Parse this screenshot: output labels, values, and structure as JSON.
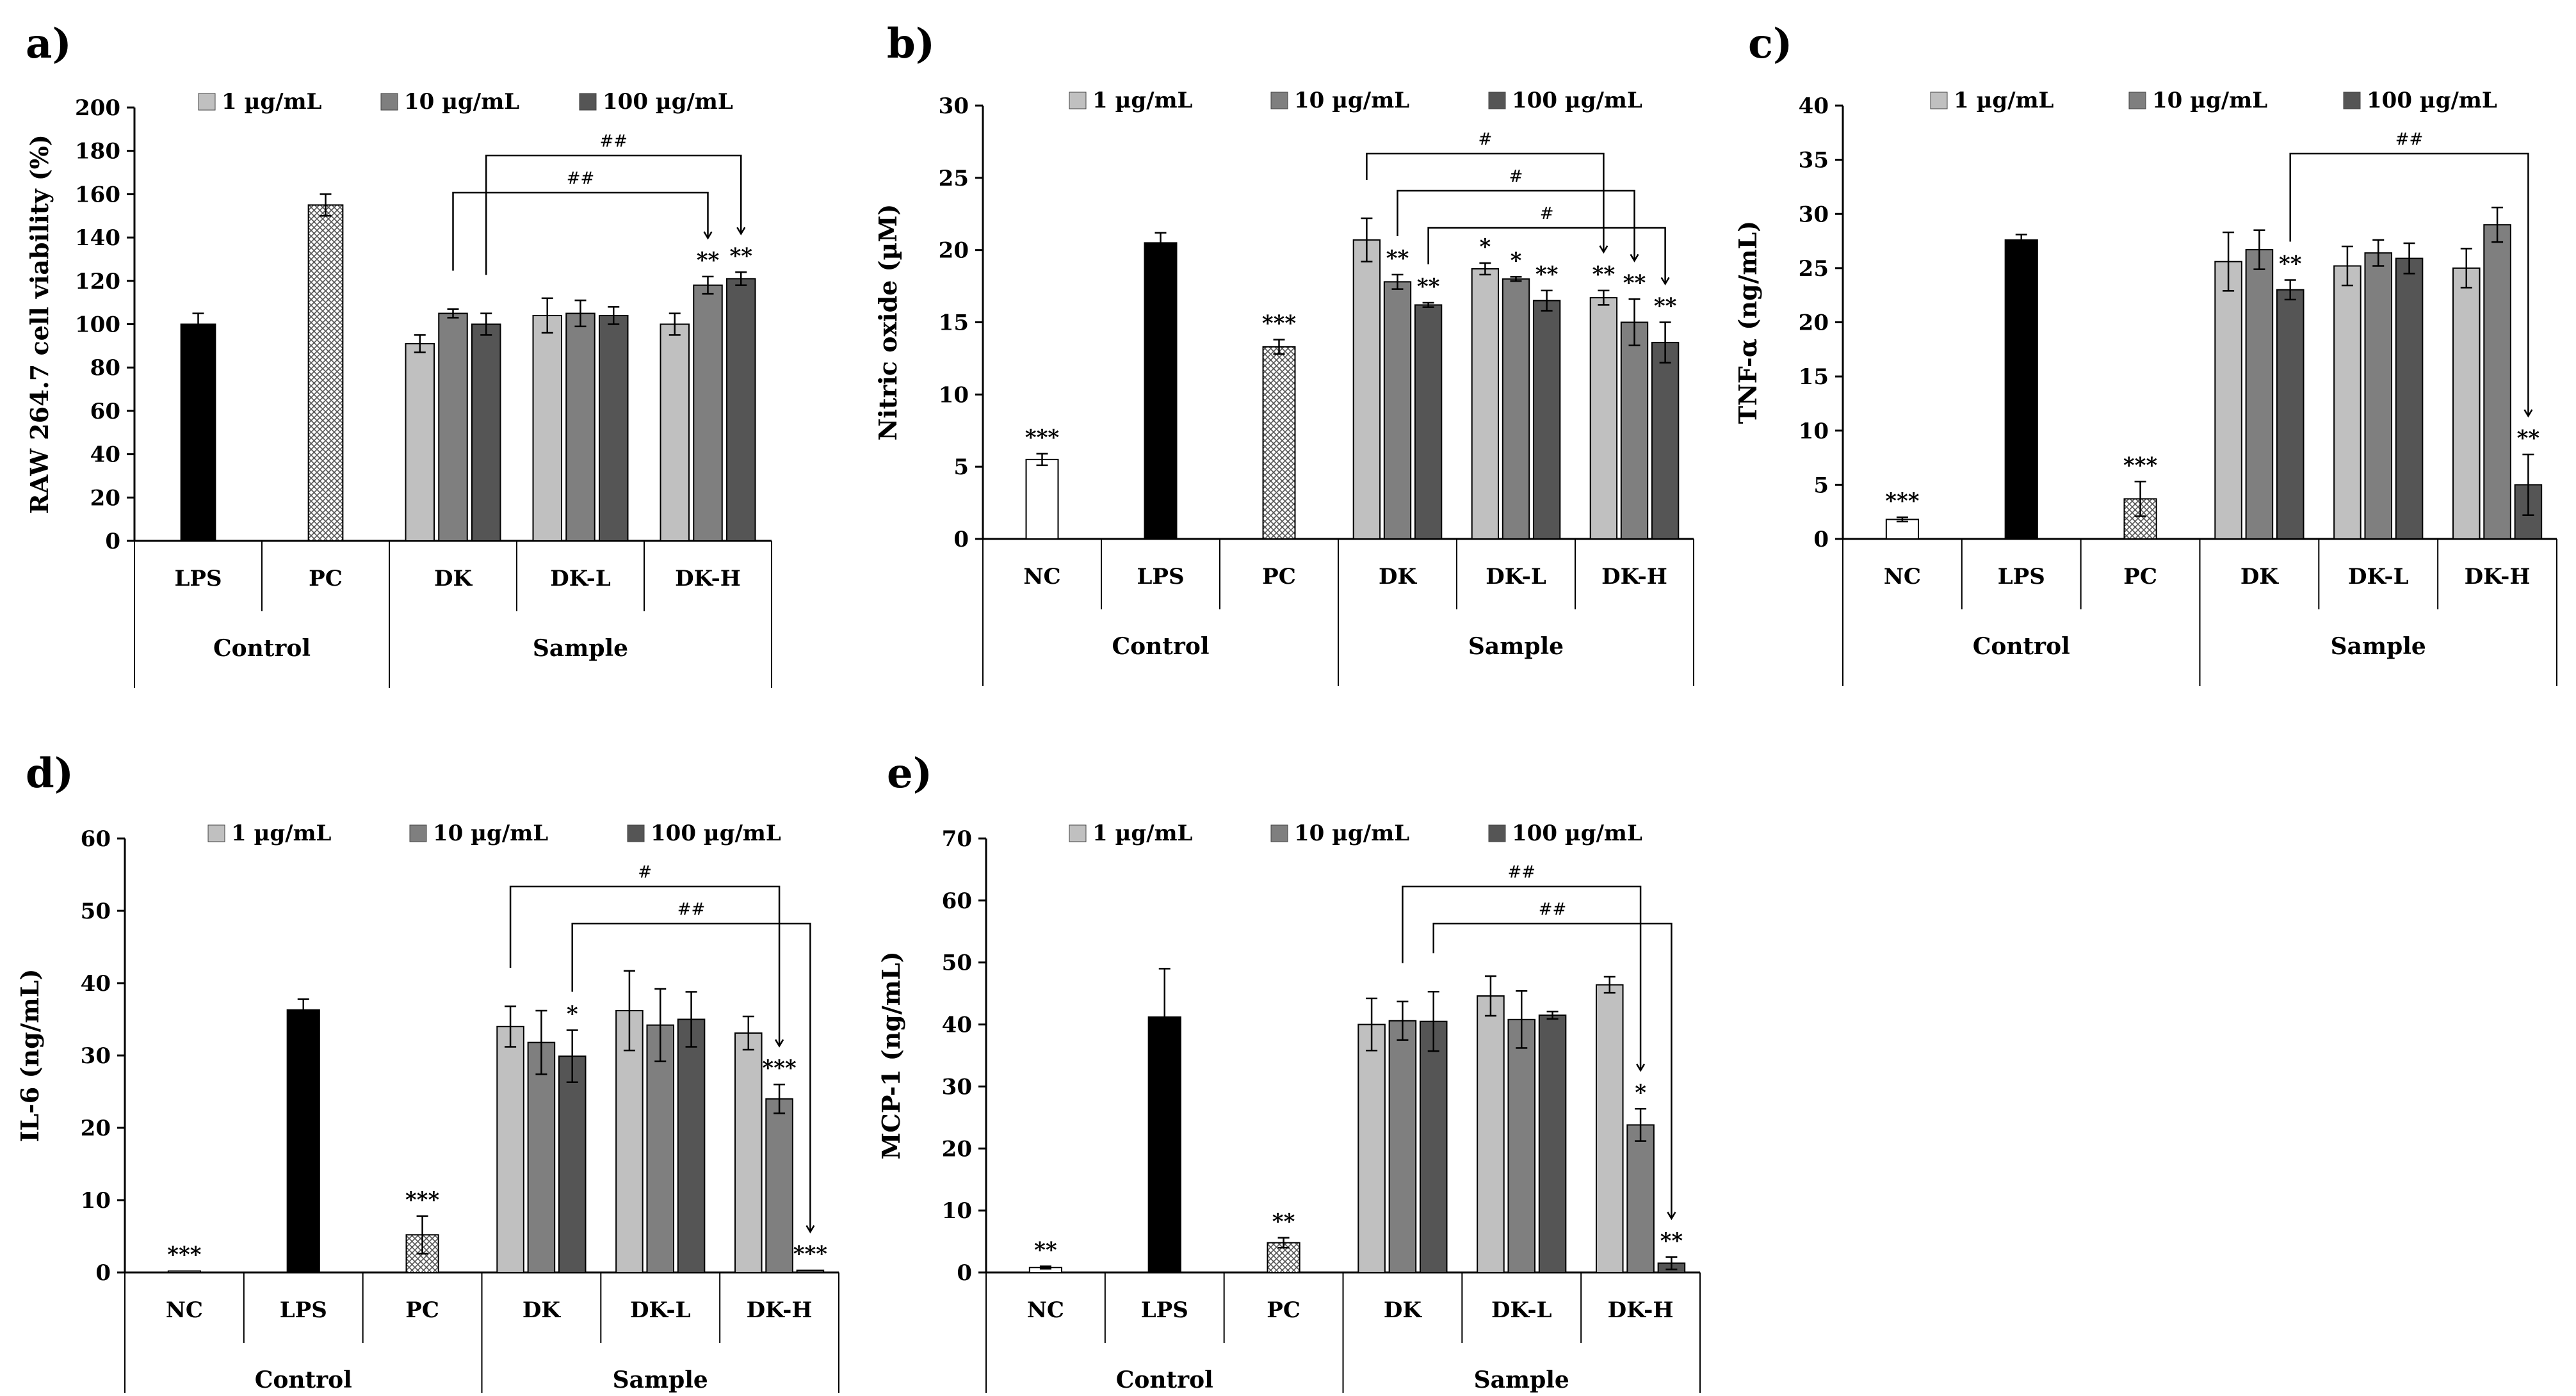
{
  "chart_data": [
    {
      "id": "a",
      "type": "bar",
      "panel_label": "a)",
      "ylabel": "RAW 264.7  cell  viability (%)",
      "ylim": [
        0,
        200
      ],
      "yticks": [
        0,
        20,
        40,
        60,
        80,
        100,
        120,
        140,
        160,
        180,
        200
      ],
      "legend": [
        "1 µg/mL",
        "10 µg/mL",
        "100 µg/mL"
      ],
      "groups": [
        {
          "name": "Control",
          "categories": [
            "LPS",
            "PC"
          ]
        },
        {
          "name": "Sample",
          "categories": [
            "DK",
            "DK-L",
            "DK-H"
          ]
        }
      ],
      "bars": [
        {
          "category": "LPS",
          "style": "black",
          "value": 100,
          "error": 5
        },
        {
          "category": "PC",
          "style": "hatched",
          "value": 155,
          "error": 5
        },
        {
          "category": "DK",
          "series": "1 µg/mL",
          "value": 91,
          "error": 4
        },
        {
          "category": "DK",
          "series": "10 µg/mL",
          "value": 105,
          "error": 2
        },
        {
          "category": "DK",
          "series": "100 µg/mL",
          "value": 100,
          "error": 5
        },
        {
          "category": "DK-L",
          "series": "1 µg/mL",
          "value": 104,
          "error": 8
        },
        {
          "category": "DK-L",
          "series": "10 µg/mL",
          "value": 105,
          "error": 6
        },
        {
          "category": "DK-L",
          "series": "100 µg/mL",
          "value": 104,
          "error": 4
        },
        {
          "category": "DK-H",
          "series": "1 µg/mL",
          "value": 100,
          "error": 5
        },
        {
          "category": "DK-H",
          "series": "10 µg/mL",
          "value": 118,
          "error": 4,
          "sig": "**"
        },
        {
          "category": "DK-H",
          "series": "100 µg/mL",
          "value": 121,
          "error": 3,
          "sig": "**"
        }
      ],
      "comparisons": [
        {
          "from": "DK|10 µg/mL",
          "to": "DK-H|10 µg/mL",
          "label": "##",
          "level": 0
        },
        {
          "from": "DK|100 µg/mL",
          "to": "DK-H|100 µg/mL",
          "label": "##",
          "level": 1
        }
      ]
    },
    {
      "id": "b",
      "type": "bar",
      "panel_label": "b)",
      "ylabel": "Nitric oxide (µM)",
      "ylim": [
        0,
        30
      ],
      "yticks": [
        0,
        5,
        10,
        15,
        20,
        25,
        30
      ],
      "legend": [
        "1 µg/mL",
        "10 µg/mL",
        "100 µg/mL"
      ],
      "groups": [
        {
          "name": "Control",
          "categories": [
            "NC",
            "LPS",
            "PC"
          ]
        },
        {
          "name": "Sample",
          "categories": [
            "DK",
            "DK-L",
            "DK-H"
          ]
        }
      ],
      "bars": [
        {
          "category": "NC",
          "style": "white",
          "value": 5.5,
          "error": 0.4,
          "sig": "***"
        },
        {
          "category": "LPS",
          "style": "black",
          "value": 20.5,
          "error": 0.7
        },
        {
          "category": "PC",
          "style": "hatched",
          "value": 13.3,
          "error": 0.5,
          "sig": "***"
        },
        {
          "category": "DK",
          "series": "1 µg/mL",
          "value": 20.7,
          "error": 1.5
        },
        {
          "category": "DK",
          "series": "10 µg/mL",
          "value": 17.8,
          "error": 0.5,
          "sig": "**"
        },
        {
          "category": "DK",
          "series": "100 µg/mL",
          "value": 16.2,
          "error": 0.15,
          "sig": "**"
        },
        {
          "category": "DK-L",
          "series": "1 µg/mL",
          "value": 18.7,
          "error": 0.4,
          "sig": "*"
        },
        {
          "category": "DK-L",
          "series": "10 µg/mL",
          "value": 18.0,
          "error": 0.15,
          "sig": "*"
        },
        {
          "category": "DK-L",
          "series": "100 µg/mL",
          "value": 16.5,
          "error": 0.7,
          "sig": "**"
        },
        {
          "category": "DK-H",
          "series": "1 µg/mL",
          "value": 16.7,
          "error": 0.5,
          "sig": "**"
        },
        {
          "category": "DK-H",
          "series": "10 µg/mL",
          "value": 15.0,
          "error": 1.6,
          "sig": "**"
        },
        {
          "category": "DK-H",
          "series": "100 µg/mL",
          "value": 13.6,
          "error": 1.4,
          "sig": "**"
        }
      ],
      "comparisons": [
        {
          "from": "DK|1 µg/mL",
          "to": "DK-H|1 µg/mL",
          "label": "#",
          "level": 2
        },
        {
          "from": "DK|10 µg/mL",
          "to": "DK-H|10 µg/mL",
          "label": "#",
          "level": 1
        },
        {
          "from": "DK|100 µg/mL",
          "to": "DK-H|100 µg/mL",
          "label": "#",
          "level": 0
        }
      ]
    },
    {
      "id": "c",
      "type": "bar",
      "panel_label": "c)",
      "ylabel": "TNF-α (ng/mL)",
      "ylim": [
        0,
        40
      ],
      "yticks": [
        0,
        5,
        10,
        15,
        20,
        25,
        30,
        35,
        40
      ],
      "legend": [
        "1 µg/mL",
        "10 µg/mL",
        "100 µg/mL"
      ],
      "groups": [
        {
          "name": "Control",
          "categories": [
            "NC",
            "LPS",
            "PC"
          ]
        },
        {
          "name": "Sample",
          "categories": [
            "DK",
            "DK-L",
            "DK-H"
          ]
        }
      ],
      "bars": [
        {
          "category": "NC",
          "style": "white",
          "value": 1.8,
          "error": 0.2,
          "sig": "***"
        },
        {
          "category": "LPS",
          "style": "black",
          "value": 27.6,
          "error": 0.5
        },
        {
          "category": "PC",
          "style": "hatched",
          "value": 3.7,
          "error": 1.6,
          "sig": "***"
        },
        {
          "category": "DK",
          "series": "1 µg/mL",
          "value": 25.6,
          "error": 2.7
        },
        {
          "category": "DK",
          "series": "10 µg/mL",
          "value": 26.7,
          "error": 1.8
        },
        {
          "category": "DK",
          "series": "100 µg/mL",
          "value": 23.0,
          "error": 0.9,
          "sig": "**"
        },
        {
          "category": "DK-L",
          "series": "1 µg/mL",
          "value": 25.2,
          "error": 1.8
        },
        {
          "category": "DK-L",
          "series": "10 µg/mL",
          "value": 26.4,
          "error": 1.2
        },
        {
          "category": "DK-L",
          "series": "100 µg/mL",
          "value": 25.9,
          "error": 1.4
        },
        {
          "category": "DK-H",
          "series": "1 µg/mL",
          "value": 25.0,
          "error": 1.8
        },
        {
          "category": "DK-H",
          "series": "10 µg/mL",
          "value": 29.0,
          "error": 1.6
        },
        {
          "category": "DK-H",
          "series": "100 µg/mL",
          "value": 5.0,
          "error": 2.8,
          "sig": "**"
        }
      ],
      "comparisons": [
        {
          "from": "DK|100 µg/mL",
          "to": "DK-H|100 µg/mL",
          "label": "##",
          "level": 0
        }
      ]
    },
    {
      "id": "d",
      "type": "bar",
      "panel_label": "d)",
      "ylabel": "IL-6 (ng/mL)",
      "ylim": [
        0,
        60
      ],
      "yticks": [
        0,
        10,
        20,
        30,
        40,
        50,
        60
      ],
      "legend": [
        "1 µg/mL",
        "10 µg/mL",
        "100 µg/mL"
      ],
      "groups": [
        {
          "name": "Control",
          "categories": [
            "NC",
            "LPS",
            "PC"
          ]
        },
        {
          "name": "Sample",
          "categories": [
            "DK",
            "DK-L",
            "DK-H"
          ]
        }
      ],
      "bars": [
        {
          "category": "NC",
          "style": "white",
          "value": 0.2,
          "error": 0,
          "sig": "***"
        },
        {
          "category": "LPS",
          "style": "black",
          "value": 36.3,
          "error": 1.5
        },
        {
          "category": "PC",
          "style": "hatched",
          "value": 5.2,
          "error": 2.6,
          "sig": "***"
        },
        {
          "category": "DK",
          "series": "1 µg/mL",
          "value": 34.0,
          "error": 2.8
        },
        {
          "category": "DK",
          "series": "10 µg/mL",
          "value": 31.8,
          "error": 4.4
        },
        {
          "category": "DK",
          "series": "100 µg/mL",
          "value": 29.9,
          "error": 3.6,
          "sig": "*"
        },
        {
          "category": "DK-L",
          "series": "1 µg/mL",
          "value": 36.2,
          "error": 5.5
        },
        {
          "category": "DK-L",
          "series": "10 µg/mL",
          "value": 34.2,
          "error": 5.0
        },
        {
          "category": "DK-L",
          "series": "100 µg/mL",
          "value": 35.0,
          "error": 3.8
        },
        {
          "category": "DK-H",
          "series": "1 µg/mL",
          "value": 33.1,
          "error": 2.3
        },
        {
          "category": "DK-H",
          "series": "10 µg/mL",
          "value": 24.0,
          "error": 2.0,
          "sig": "***"
        },
        {
          "category": "DK-H",
          "series": "100 µg/mL",
          "value": 0.3,
          "error": 0,
          "sig": "***"
        }
      ],
      "comparisons": [
        {
          "from": "DK|1 µg/mL",
          "to": "DK-H|10 µg/mL",
          "label": "#",
          "level": 1
        },
        {
          "from": "DK|100 µg/mL",
          "to": "DK-H|100 µg/mL",
          "label": "##",
          "level": 0
        }
      ]
    },
    {
      "id": "e",
      "type": "bar",
      "panel_label": "e)",
      "ylabel": "MCP-1 (ng/mL)",
      "ylim": [
        0,
        70
      ],
      "yticks": [
        0,
        10,
        20,
        30,
        40,
        50,
        60,
        70
      ],
      "legend": [
        "1 µg/mL",
        "10 µg/mL",
        "100 µg/mL"
      ],
      "groups": [
        {
          "name": "Control",
          "categories": [
            "NC",
            "LPS",
            "PC"
          ]
        },
        {
          "name": "Sample",
          "categories": [
            "DK",
            "DK-L",
            "DK-H"
          ]
        }
      ],
      "bars": [
        {
          "category": "NC",
          "style": "white",
          "value": 0.8,
          "error": 0.2,
          "sig": "**"
        },
        {
          "category": "LPS",
          "style": "black",
          "value": 41.2,
          "error": 7.8
        },
        {
          "category": "PC",
          "style": "hatched",
          "value": 4.8,
          "error": 0.8,
          "sig": "**"
        },
        {
          "category": "DK",
          "series": "1 µg/mL",
          "value": 40.0,
          "error": 4.2
        },
        {
          "category": "DK",
          "series": "10 µg/mL",
          "value": 40.6,
          "error": 3.1
        },
        {
          "category": "DK",
          "series": "100 µg/mL",
          "value": 40.5,
          "error": 4.8
        },
        {
          "category": "DK-L",
          "series": "1 µg/mL",
          "value": 44.6,
          "error": 3.2
        },
        {
          "category": "DK-L",
          "series": "10 µg/mL",
          "value": 40.8,
          "error": 4.6
        },
        {
          "category": "DK-L",
          "series": "100 µg/mL",
          "value": 41.5,
          "error": 0.6
        },
        {
          "category": "DK-H",
          "series": "1 µg/mL",
          "value": 46.4,
          "error": 1.3
        },
        {
          "category": "DK-H",
          "series": "10 µg/mL",
          "value": 23.8,
          "error": 2.6,
          "sig": "*"
        },
        {
          "category": "DK-H",
          "series": "100 µg/mL",
          "value": 1.5,
          "error": 1.0,
          "sig": "**"
        }
      ],
      "comparisons": [
        {
          "from": "DK|10 µg/mL",
          "to": "DK-H|10 µg/mL",
          "label": "##",
          "level": 1
        },
        {
          "from": "DK|100 µg/mL",
          "to": "DK-H|100 µg/mL",
          "label": "##",
          "level": 0
        }
      ]
    }
  ],
  "colors": {
    "s1": "#c0c0c0",
    "s2": "#7f7f7f",
    "s3": "#555555",
    "black": "#000000",
    "white": "#ffffff"
  }
}
